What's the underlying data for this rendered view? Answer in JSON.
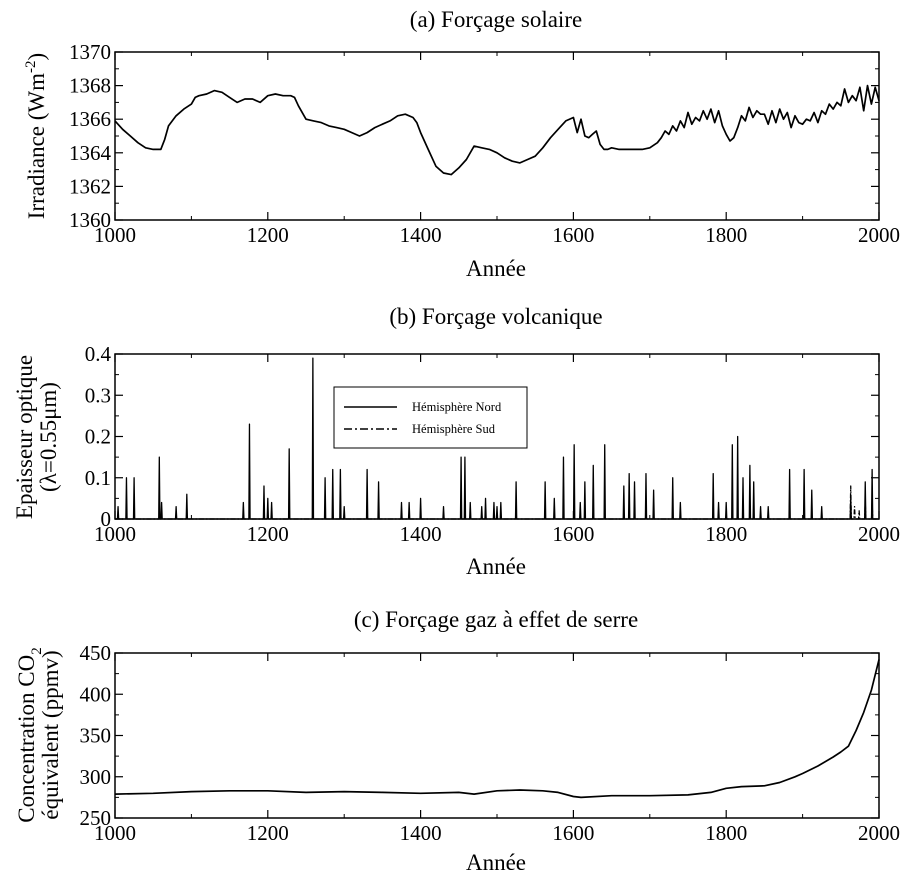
{
  "chart_data": [
    {
      "type": "line",
      "title": "(a) Forçage solaire",
      "xlabel": "Année",
      "ylabel": "Irradiance (Wm",
      "ylabel_sup": "-2",
      "ylabel_end": ")",
      "xlim": [
        1000,
        2000
      ],
      "ylim": [
        1360,
        1370
      ],
      "xticks": [
        1000,
        1200,
        1400,
        1600,
        1800,
        2000
      ],
      "yticks": [
        1360,
        1362,
        1364,
        1366,
        1368,
        1370
      ],
      "series": [
        {
          "x": [
            1000,
            1010,
            1020,
            1030,
            1040,
            1050,
            1060,
            1065,
            1070,
            1080,
            1090,
            1100,
            1105,
            1110,
            1120,
            1130,
            1140,
            1150,
            1160,
            1170,
            1180,
            1190,
            1200,
            1210,
            1220,
            1230,
            1235,
            1240,
            1250,
            1260,
            1270,
            1280,
            1290,
            1300,
            1310,
            1320,
            1330,
            1340,
            1350,
            1360,
            1370,
            1380,
            1390,
            1395,
            1400,
            1410,
            1420,
            1430,
            1440,
            1450,
            1460,
            1470,
            1480,
            1490,
            1500,
            1510,
            1520,
            1530,
            1540,
            1550,
            1560,
            1570,
            1580,
            1590,
            1600,
            1605,
            1610,
            1615,
            1620,
            1625,
            1630,
            1635,
            1640,
            1645,
            1650,
            1660,
            1670,
            1680,
            1690,
            1700,
            1710,
            1715,
            1720,
            1725,
            1730,
            1735,
            1740,
            1745,
            1750,
            1755,
            1760,
            1765,
            1770,
            1775,
            1780,
            1785,
            1790,
            1795,
            1800,
            1805,
            1810,
            1815,
            1820,
            1825,
            1830,
            1835,
            1840,
            1845,
            1850,
            1855,
            1860,
            1865,
            1870,
            1875,
            1880,
            1885,
            1890,
            1895,
            1900,
            1905,
            1910,
            1915,
            1920,
            1925,
            1930,
            1935,
            1940,
            1945,
            1950,
            1955,
            1960,
            1965,
            1970,
            1975,
            1980,
            1985,
            1990,
            1995,
            2000
          ],
          "y": [
            1365.9,
            1365.4,
            1365.0,
            1364.6,
            1364.3,
            1364.2,
            1364.2,
            1364.8,
            1365.6,
            1366.2,
            1366.6,
            1366.9,
            1367.3,
            1367.4,
            1367.5,
            1367.7,
            1367.6,
            1367.3,
            1367.0,
            1367.2,
            1367.2,
            1367.0,
            1367.4,
            1367.5,
            1367.4,
            1367.4,
            1367.3,
            1366.8,
            1366.0,
            1365.9,
            1365.8,
            1365.6,
            1365.5,
            1365.4,
            1365.2,
            1365.0,
            1365.2,
            1365.5,
            1365.7,
            1365.9,
            1366.2,
            1366.3,
            1366.1,
            1365.8,
            1365.2,
            1364.2,
            1363.2,
            1362.8,
            1362.7,
            1363.1,
            1363.6,
            1364.4,
            1364.3,
            1364.2,
            1364.0,
            1363.7,
            1363.5,
            1363.4,
            1363.6,
            1363.8,
            1364.3,
            1364.9,
            1365.4,
            1365.9,
            1366.1,
            1365.2,
            1366.0,
            1365.0,
            1364.9,
            1365.1,
            1365.3,
            1364.5,
            1364.2,
            1364.2,
            1364.3,
            1364.2,
            1364.2,
            1364.2,
            1364.2,
            1364.3,
            1364.6,
            1364.9,
            1365.3,
            1365.1,
            1365.6,
            1365.3,
            1365.9,
            1365.5,
            1366.4,
            1365.7,
            1366.1,
            1365.9,
            1366.5,
            1366.0,
            1366.6,
            1365.8,
            1366.5,
            1365.6,
            1365.1,
            1364.7,
            1364.9,
            1365.5,
            1366.2,
            1365.9,
            1366.7,
            1366.1,
            1366.5,
            1366.3,
            1366.3,
            1365.7,
            1366.5,
            1365.8,
            1366.6,
            1366.0,
            1366.4,
            1365.5,
            1366.2,
            1365.8,
            1365.7,
            1366.0,
            1365.9,
            1366.4,
            1365.8,
            1366.5,
            1366.3,
            1366.9,
            1366.6,
            1367.0,
            1366.8,
            1367.8,
            1367.0,
            1367.4,
            1367.1,
            1367.9,
            1366.5,
            1368.0,
            1366.9,
            1367.9,
            1367.1
          ]
        }
      ]
    },
    {
      "type": "line",
      "title": "(b) Forçage volcanique",
      "xlabel": "Année",
      "ylabel_line1": "Epaisseur optique",
      "ylabel_line2": "(λ=0.55μm)",
      "xlim": [
        1000,
        2000
      ],
      "ylim": [
        0,
        0.4
      ],
      "xticks": [
        1000,
        1200,
        1400,
        1600,
        1800,
        2000
      ],
      "yticks": [
        0,
        0.1,
        0.2,
        0.3,
        0.4
      ],
      "ytick_labels": [
        "0",
        "0.1",
        "0.2",
        "0.3",
        "0.4"
      ],
      "legend": {
        "position": "upper-middle",
        "entries": [
          "Hémisphère Nord",
          "Hémisphère Sud"
        ]
      },
      "series": [
        {
          "name": "Hémisphère Nord",
          "style": "solid",
          "eruptions": [
            [
              1004,
              0.03
            ],
            [
              1015,
              0.1
            ],
            [
              1025,
              0.1
            ],
            [
              1058,
              0.15
            ],
            [
              1061,
              0.04
            ],
            [
              1080,
              0.03
            ],
            [
              1094,
              0.06
            ],
            [
              1168,
              0.04
            ],
            [
              1176,
              0.23
            ],
            [
              1195,
              0.08
            ],
            [
              1200,
              0.05
            ],
            [
              1205,
              0.04
            ],
            [
              1228,
              0.17
            ],
            [
              1259,
              0.39
            ],
            [
              1275,
              0.1
            ],
            [
              1285,
              0.12
            ],
            [
              1295,
              0.12
            ],
            [
              1300,
              0.03
            ],
            [
              1330,
              0.12
            ],
            [
              1345,
              0.09
            ],
            [
              1375,
              0.04
            ],
            [
              1385,
              0.04
            ],
            [
              1400,
              0.05
            ],
            [
              1430,
              0.03
            ],
            [
              1453,
              0.15
            ],
            [
              1458,
              0.15
            ],
            [
              1465,
              0.04
            ],
            [
              1480,
              0.03
            ],
            [
              1485,
              0.05
            ],
            [
              1496,
              0.04
            ],
            [
              1500,
              0.03
            ],
            [
              1505,
              0.04
            ],
            [
              1525,
              0.09
            ],
            [
              1563,
              0.09
            ],
            [
              1575,
              0.05
            ],
            [
              1587,
              0.15
            ],
            [
              1601,
              0.18
            ],
            [
              1609,
              0.04
            ],
            [
              1615,
              0.09
            ],
            [
              1626,
              0.13
            ],
            [
              1641,
              0.18
            ],
            [
              1666,
              0.08
            ],
            [
              1673,
              0.11
            ],
            [
              1680,
              0.09
            ],
            [
              1695,
              0.11
            ],
            [
              1705,
              0.07
            ],
            [
              1730,
              0.1
            ],
            [
              1740,
              0.04
            ],
            [
              1783,
              0.11
            ],
            [
              1790,
              0.04
            ],
            [
              1800,
              0.04
            ],
            [
              1808,
              0.18
            ],
            [
              1815,
              0.2
            ],
            [
              1822,
              0.1
            ],
            [
              1831,
              0.13
            ],
            [
              1836,
              0.09
            ],
            [
              1845,
              0.03
            ],
            [
              1855,
              0.03
            ],
            [
              1883,
              0.12
            ],
            [
              1902,
              0.12
            ],
            [
              1912,
              0.07
            ],
            [
              1925,
              0.03
            ],
            [
              1963,
              0.05
            ],
            [
              1982,
              0.09
            ],
            [
              1991,
              0.12
            ]
          ]
        },
        {
          "name": "Hémisphère Sud",
          "style": "dash-dot",
          "eruptions": [
            [
              1963,
              0.08
            ],
            [
              1968,
              0.03
            ],
            [
              1974,
              0.02
            ],
            [
              1982,
              0.04
            ],
            [
              1991,
              0.04
            ]
          ]
        }
      ]
    },
    {
      "type": "line",
      "title": "(c) Forçage gaz à effet de serre",
      "xlabel": "Année",
      "ylabel_line1": "Concentration CO",
      "ylabel_line1_sub": "2",
      "ylabel_line2": "équivalent (ppmv)",
      "xlim": [
        1000,
        2000
      ],
      "ylim": [
        250,
        450
      ],
      "xticks": [
        1000,
        1200,
        1400,
        1600,
        1800,
        2000
      ],
      "yticks": [
        250,
        300,
        350,
        400,
        450
      ],
      "series": [
        {
          "x": [
            1000,
            1050,
            1100,
            1150,
            1200,
            1250,
            1300,
            1350,
            1400,
            1450,
            1470,
            1500,
            1530,
            1560,
            1580,
            1600,
            1610,
            1650,
            1700,
            1750,
            1780,
            1800,
            1820,
            1850,
            1870,
            1890,
            1900,
            1920,
            1940,
            1950,
            1960,
            1970,
            1980,
            1990,
            2000
          ],
          "y": [
            279,
            280,
            282,
            283,
            283,
            281,
            282,
            281,
            280,
            281,
            279,
            283,
            284,
            283,
            281,
            276,
            275,
            277,
            277,
            278,
            281,
            286,
            288,
            289,
            293,
            300,
            304,
            313,
            324,
            330,
            337,
            356,
            378,
            405,
            442
          ]
        }
      ]
    }
  ]
}
